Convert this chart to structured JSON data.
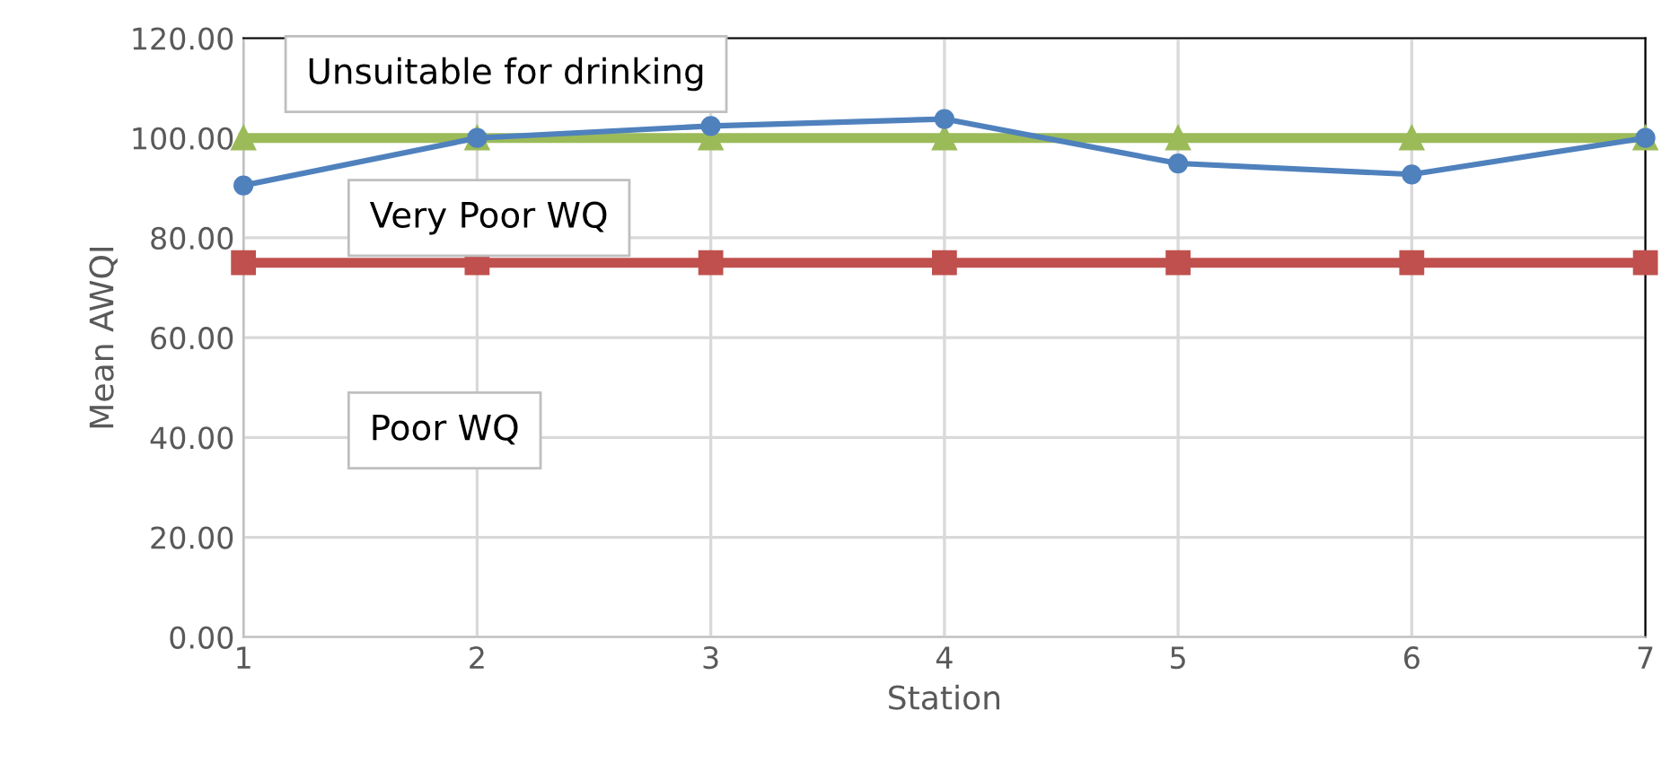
{
  "chart_data": {
    "type": "line",
    "xlabel": "Station",
    "ylabel": "Mean AWQI",
    "x": [
      1,
      2,
      3,
      4,
      5,
      6,
      7
    ],
    "series": [
      {
        "color": "#4f81bd",
        "marker": "circle",
        "values": [
          90.5,
          100.0,
          102.4,
          103.8,
          94.9,
          92.7,
          100.0
        ]
      },
      {
        "color": "#c0504d",
        "marker": "square",
        "values": [
          75,
          75,
          75,
          75,
          75,
          75,
          75
        ]
      },
      {
        "color": "#9bbb59",
        "marker": "triangle",
        "values": [
          100,
          100,
          100,
          100,
          100,
          100,
          100
        ]
      }
    ],
    "xlim": [
      1,
      7
    ],
    "xticks": [
      1,
      2,
      3,
      4,
      5,
      6,
      7
    ],
    "ylim": [
      0,
      120
    ],
    "yticks": [
      {
        "value": 0,
        "label": "0.00"
      },
      {
        "value": 20,
        "label": "20.00"
      },
      {
        "value": 40,
        "label": "40.00"
      },
      {
        "value": 60,
        "label": "60.00"
      },
      {
        "value": 80,
        "label": "80.00"
      },
      {
        "value": 100,
        "label": "100.00"
      },
      {
        "value": 120,
        "label": "120.00"
      }
    ],
    "grid": true,
    "line_style": "solid",
    "annotations": [
      "Unsuitable for drinking",
      "Very Poor WQ",
      "Poor WQ"
    ]
  }
}
